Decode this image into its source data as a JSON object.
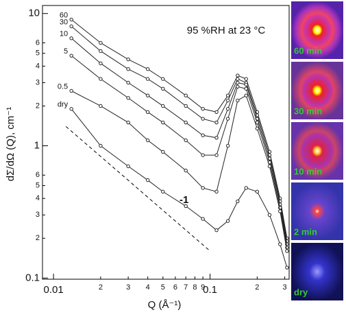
{
  "chart_data": {
    "type": "line",
    "annotation": "95 %RH at 23 °C",
    "x_label": "Q (Å⁻¹)",
    "y_label": "dΣ/dΩ (Q), cm⁻¹",
    "log_x": true,
    "log_y": true,
    "xlim": [
      0.0085,
      0.32
    ],
    "ylim": [
      0.098,
      11.5
    ],
    "xticks": [
      0.01,
      {
        "value": 0.02,
        "label": "2"
      },
      {
        "value": 0.03,
        "label": "3"
      },
      {
        "value": 0.04,
        "label": "4"
      },
      {
        "value": 0.05,
        "label": "5"
      },
      {
        "value": 0.06,
        "label": "6"
      },
      {
        "value": 0.07,
        "label": "7"
      },
      {
        "value": 0.08,
        "label": "8"
      },
      {
        "value": 0.09,
        "label": "9"
      },
      0.1,
      {
        "value": 0.2,
        "label": "2"
      },
      {
        "value": 0.3,
        "label": "3"
      }
    ],
    "yticks": [
      0.1,
      {
        "value": 0.2,
        "label": "2"
      },
      {
        "value": 0.3,
        "label": "3"
      },
      {
        "value": 0.4,
        "label": "4"
      },
      {
        "value": 0.5,
        "label": "5"
      },
      {
        "value": 0.6,
        "label": "6"
      },
      1,
      2,
      3,
      4,
      5,
      6,
      10
    ],
    "x": [
      0.013,
      0.02,
      0.03,
      0.04,
      0.05,
      0.07,
      0.09,
      0.11,
      0.13,
      0.15,
      0.17,
      0.2,
      0.24,
      0.28,
      0.31
    ],
    "series": [
      {
        "name": "60",
        "color": "#222222",
        "values": [
          9,
          6,
          4.5,
          3.8,
          3.2,
          2.4,
          1.9,
          1.8,
          2.4,
          3.4,
          3.2,
          1.8,
          0.9,
          0.4,
          0.2
        ]
      },
      {
        "name": "30",
        "color": "#222222",
        "values": [
          8,
          5.2,
          3.8,
          3.2,
          2.7,
          2.0,
          1.6,
          1.5,
          2.2,
          3.2,
          3.0,
          1.7,
          0.85,
          0.38,
          0.19
        ]
      },
      {
        "name": "10",
        "color": "#222222",
        "values": [
          6.5,
          4.2,
          3.0,
          2.4,
          2.0,
          1.5,
          1.2,
          1.15,
          1.9,
          3.0,
          2.9,
          1.6,
          0.8,
          0.36,
          0.18
        ]
      },
      {
        "name": "5",
        "color": "#222222",
        "values": [
          4.8,
          3.2,
          2.3,
          1.8,
          1.5,
          1.1,
          0.85,
          0.85,
          1.6,
          2.8,
          2.7,
          1.5,
          0.75,
          0.34,
          0.17
        ]
      },
      {
        "name": "0.5",
        "color": "#222222",
        "values": [
          2.6,
          2.0,
          1.5,
          1.1,
          0.9,
          0.65,
          0.48,
          0.45,
          1.0,
          2.2,
          2.4,
          1.35,
          0.7,
          0.32,
          0.16
        ]
      },
      {
        "name": "dry",
        "color": "#222222",
        "values": [
          1.9,
          1.0,
          0.7,
          0.55,
          0.45,
          0.35,
          0.28,
          0.23,
          0.27,
          0.38,
          0.48,
          0.45,
          0.3,
          0.18,
          0.12
        ]
      }
    ],
    "reference_line": {
      "label": "-1",
      "x": [
        0.012,
        0.1
      ],
      "y": [
        1.4,
        0.16
      ]
    }
  },
  "insets": [
    "60 min",
    "30 min",
    "10 min",
    "2 min",
    "dry"
  ]
}
